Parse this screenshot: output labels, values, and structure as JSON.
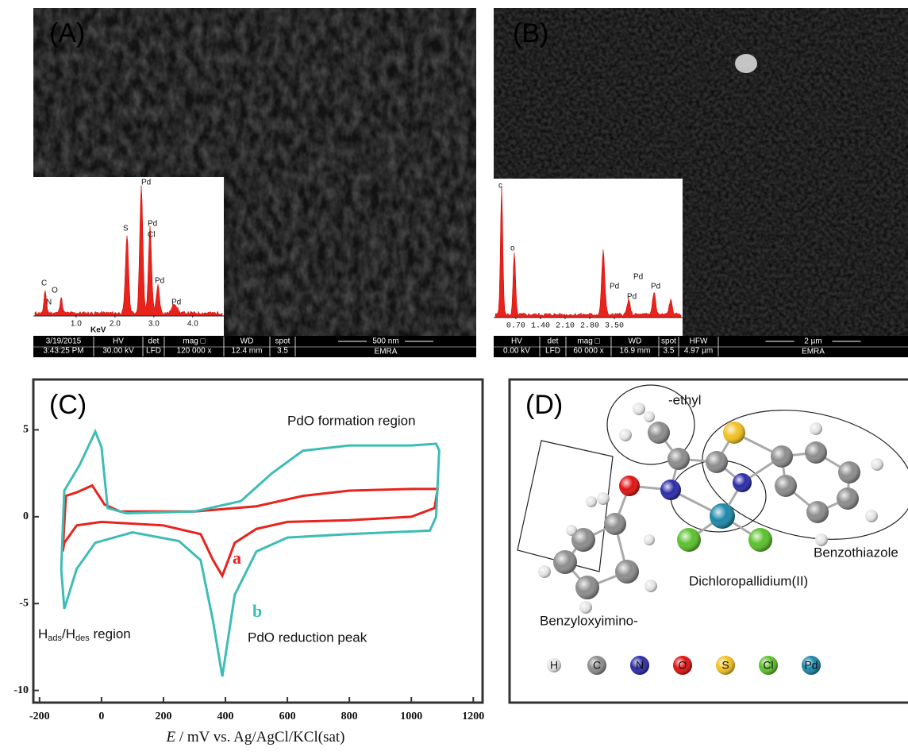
{
  "panel_a": {
    "label": "(A)",
    "edx": {
      "xlabel": "KeV",
      "xlim": [
        -0.1,
        4.8
      ],
      "xticks": [
        {
          "value": 1,
          "label": "1.0"
        },
        {
          "value": 2,
          "label": "2.0"
        },
        {
          "value": 3,
          "label": "3.0"
        },
        {
          "value": 4,
          "label": "4.0"
        }
      ],
      "peak_labels": [
        "Pd",
        "S",
        "Pd",
        "Cl",
        "Pd",
        "Pd",
        "C",
        "O",
        "N"
      ]
    },
    "info_bar": [
      [
        "3/19/2015",
        "3:43:25 PM"
      ],
      [
        "HV",
        "30.00 kV"
      ],
      [
        "det",
        "LFD"
      ],
      [
        "mag □",
        "120 000 x"
      ],
      [
        "WD",
        "12.4 mm"
      ],
      [
        "spot",
        "3.5"
      ]
    ],
    "scale_bar": "500 nm",
    "maker": "EMRA"
  },
  "panel_b": {
    "label": "(B)",
    "edx": {
      "xlim": [
        0.07,
        5.44
      ],
      "xticks": [
        {
          "value": 0.7,
          "label": "0.70"
        },
        {
          "value": 1.4,
          "label": "1.40"
        },
        {
          "value": 2.1,
          "label": "2.10"
        },
        {
          "value": 2.8,
          "label": "2.80"
        },
        {
          "value": 3.5,
          "label": "3.50"
        }
      ],
      "peak_labels": [
        "c",
        "o",
        "Pd",
        "Pd",
        "Pd",
        "Pd"
      ]
    },
    "info_bar": [
      [
        "HV",
        "0.00 kV"
      ],
      [
        "det",
        "LFD"
      ],
      [
        "mag □",
        "60 000 x"
      ],
      [
        "WD",
        "16.9 mm"
      ],
      [
        "spot",
        "3.5"
      ],
      [
        "HFW",
        "4.97 µm"
      ]
    ],
    "scale_bar": "2 µm",
    "maker": "EMRA"
  },
  "chart_data": {
    "type": "line",
    "label": "(C)",
    "xlabel": [
      "E",
      " / mV vs. Ag/AgCl/KCl(sat)"
    ],
    "xlim": [
      -220,
      1230
    ],
    "xticks": [
      -200,
      0,
      200,
      400,
      600,
      800,
      1000,
      1200
    ],
    "ylim": [
      -10.7,
      7.9
    ],
    "yticks": [
      -10,
      -5,
      0,
      5
    ],
    "annotations": {
      "formation": "PdO formation region",
      "reduction": "PdO reduction peak",
      "hads": [
        "H",
        "ads",
        "/H",
        "des",
        " region"
      ]
    },
    "series": [
      {
        "name": "a",
        "color": "#e8231c",
        "x": [
          -125,
          -115,
          -80,
          -30,
          10,
          60,
          300,
          500,
          650,
          800,
          1000,
          1085,
          1075,
          1000,
          800,
          600,
          500,
          430,
          390,
          360,
          320,
          200,
          0,
          -80,
          -120,
          -125
        ],
        "values": [
          -2.0,
          1.2,
          1.4,
          1.8,
          0.7,
          0.3,
          0.3,
          0.6,
          1.2,
          1.5,
          1.6,
          1.6,
          0.5,
          0.0,
          -0.2,
          -0.3,
          -0.7,
          -1.5,
          -3.4,
          -2.5,
          -1.0,
          -0.5,
          -0.3,
          -0.5,
          -1.5,
          -2.0
        ]
      },
      {
        "name": "b",
        "color": "#3dbdb5",
        "x": [
          -130,
          -120,
          -70,
          -20,
          0,
          20,
          80,
          300,
          450,
          550,
          650,
          800,
          1000,
          1080,
          1090,
          1080,
          1060,
          800,
          600,
          500,
          430,
          390,
          360,
          320,
          250,
          100,
          -20,
          -80,
          -120,
          -130
        ],
        "values": [
          -3.0,
          1.5,
          3.0,
          4.9,
          4.0,
          0.5,
          0.2,
          0.3,
          0.9,
          2.5,
          3.8,
          4.1,
          4.1,
          4.2,
          3.8,
          0.0,
          -0.8,
          -1.0,
          -1.2,
          -2.0,
          -4.5,
          -9.2,
          -6.0,
          -2.5,
          -1.4,
          -0.9,
          -1.5,
          -3.0,
          -5.3,
          -3.0
        ]
      }
    ]
  },
  "panel_d": {
    "label": "(D)",
    "ethyl": "-ethyl",
    "benzothiazole": "Benzothiazole",
    "dichloro": "Dichloropallidium(II)",
    "benzyloxyimino": "Benzyloxyimino-",
    "legend": [
      {
        "label": "H",
        "color": "#e6e6e6"
      },
      {
        "label": "C",
        "color": "#8c8c8c"
      },
      {
        "label": "N",
        "color": "#2a2aa8"
      },
      {
        "label": "O",
        "color": "#e01010"
      },
      {
        "label": "S",
        "color": "#f2c020"
      },
      {
        "label": "Cl",
        "color": "#5ac02a"
      },
      {
        "label": "Pd",
        "color": "#1a86a8"
      }
    ]
  }
}
